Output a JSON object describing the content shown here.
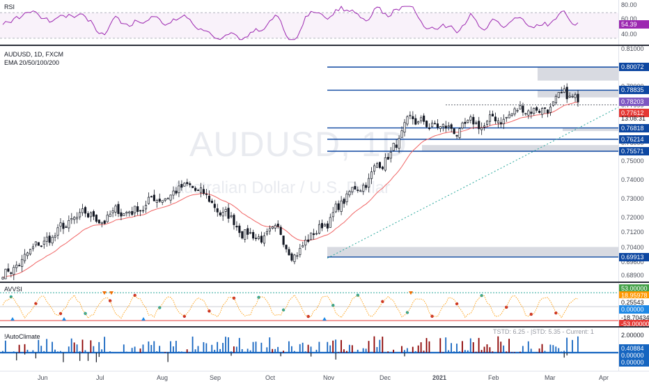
{
  "rsi": {
    "title": "RSI",
    "levels": [
      "80.00",
      "60.00",
      "40.00"
    ],
    "current": "54.39",
    "current_color": "#9c27b0"
  },
  "main": {
    "symbol_line": "AUDUSD, 1D, FXCM",
    "indicator_line": "EMA 20/50/100/200",
    "watermark_symbol": "AUDUSD, 1D",
    "watermark_name": "Australian Dollar / U.S. Dollar",
    "countdown": "13:08:31",
    "price_levels": [
      "0.81000",
      "0.79000",
      "0.77999",
      "0.76000",
      "0.75000",
      "0.74000",
      "0.73000",
      "0.72000",
      "0.71200",
      "0.70400",
      "0.69600",
      "0.68900"
    ],
    "tags": [
      {
        "label": "0.80072",
        "color": "#0d47a1",
        "kind": "level"
      },
      {
        "label": "0.78835",
        "color": "#0d47a1",
        "kind": "level"
      },
      {
        "label": "0.78203",
        "color": "#7e57c2",
        "kind": "price"
      },
      {
        "label": "0.77612",
        "color": "#e53935",
        "kind": "ema"
      },
      {
        "label": "0.76818",
        "color": "#0d47a1",
        "kind": "level"
      },
      {
        "label": "0.76214",
        "color": "#0d47a1",
        "kind": "level"
      },
      {
        "label": "0.75571",
        "color": "#0d47a1",
        "kind": "level"
      },
      {
        "label": "0.69913",
        "color": "#0d47a1",
        "kind": "level"
      }
    ],
    "accent_blue": "#0d47a1",
    "ema_color": "#f06363",
    "trend_color": "#26a69a",
    "zone_color": "#d1d4dc"
  },
  "avvsi": {
    "title": "AVVSI",
    "tags": [
      {
        "label": "53.00000",
        "color": "#43a047"
      },
      {
        "label": "18.95978",
        "color": "#ff9800"
      },
      {
        "label": "0.25543",
        "color": "#ffffff"
      },
      {
        "label": "0.00000",
        "color": "#1e88e5"
      },
      {
        "label": "-18.70434",
        "color": "#ffffff"
      },
      {
        "label": "-53.00000",
        "color": "#e53935"
      }
    ]
  },
  "autoclimate": {
    "title": "!AutoClimate",
    "readout": "TSTD: 6.25 - |STD: 5.35 - Current: 1",
    "tags": [
      {
        "label": "2.00000",
        "color": "#ffffff"
      },
      {
        "label": "0.40884",
        "color": "#1565c0"
      },
      {
        "label": "0.00000",
        "color": "#1565c0"
      },
      {
        "label": "0.00000",
        "color": "#1565c0"
      }
    ]
  },
  "xaxis": {
    "labels": [
      "Jun",
      "Jul",
      "Aug",
      "Sep",
      "Oct",
      "Nov",
      "Dec",
      "2021",
      "Feb",
      "Mar",
      "Apr"
    ]
  },
  "chart_data": {
    "type": "candlestick",
    "symbol": "AUDUSD",
    "interval": "1D",
    "x": [
      "Jun",
      "Jul",
      "Aug",
      "Sep",
      "Oct",
      "Nov",
      "Dec",
      "2021",
      "Feb",
      "Mar",
      "Apr"
    ],
    "close_by_month": [
      0.692,
      0.716,
      0.723,
      0.738,
      0.715,
      0.703,
      0.735,
      0.77,
      0.765,
      0.78,
      0.782
    ],
    "ylim": [
      0.686,
      0.812
    ],
    "horizontal_levels": [
      0.80072,
      0.78835,
      0.76818,
      0.76214,
      0.75571,
      0.69913
    ],
    "last_price": 0.78203,
    "ema20": 0.77612,
    "rsi_last": 54.39,
    "rsi_levels": [
      80,
      60,
      40
    ]
  }
}
